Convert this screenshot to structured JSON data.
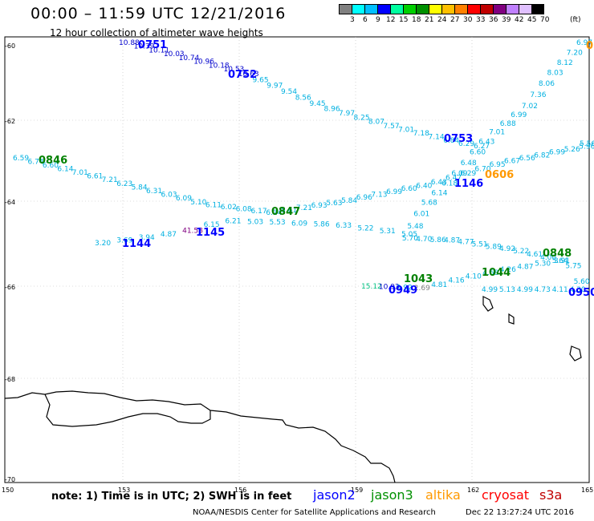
{
  "title": "00:00 – 11:59 UTC 12/21/2016",
  "subtitle": "12 hour collection of altimeter wave heights",
  "legend": {
    "unit": "(ft)",
    "colors": [
      "#808080",
      "#00ffff",
      "#00bfff",
      "#0000ff",
      "#00ffa0",
      "#00d000",
      "#009000",
      "#ffff00",
      "#ffc000",
      "#ff8000",
      "#ff0000",
      "#c00000",
      "#800080",
      "#c080ff",
      "#e0c0ff",
      "#000000"
    ],
    "labels": [
      "3",
      "6",
      "9",
      "12",
      "15",
      "18",
      "21",
      "24",
      "27",
      "30",
      "33",
      "36",
      "39",
      "42",
      "45",
      "70"
    ]
  },
  "axes": {
    "x_ticks": [
      "150",
      "153",
      "156",
      "159",
      "162",
      "165"
    ],
    "y_ticks": [
      "-60",
      "-62",
      "-64",
      "-66",
      "-68",
      "-70"
    ]
  },
  "track_labels": [
    {
      "text": "0751",
      "color": "#0000ff"
    },
    {
      "text": "0752",
      "color": "#0000ff"
    },
    {
      "text": "0753",
      "color": "#0000ff"
    },
    {
      "text": "0846",
      "color": "#008000"
    },
    {
      "text": "0847",
      "color": "#008000"
    },
    {
      "text": "0848",
      "color": "#008000"
    },
    {
      "text": "0949",
      "color": "#0000ff"
    },
    {
      "text": "0950",
      "color": "#0000ff"
    },
    {
      "text": "1043",
      "color": "#008000"
    },
    {
      "text": "1044",
      "color": "#008000"
    },
    {
      "text": "1144",
      "color": "#0000ff"
    },
    {
      "text": "1145",
      "color": "#0000ff"
    },
    {
      "text": "1146",
      "color": "#0000ff"
    },
    {
      "text": "0606",
      "color": "#ff9900"
    },
    {
      "text": "0",
      "color": "#ff9900"
    }
  ],
  "wave_tracks": [
    {
      "name": "0751-0752",
      "color_start": "#0000cc",
      "color_end": "#00b0e0",
      "values": [
        "10.88",
        "10.39",
        "10.11",
        "10.03",
        "10.74",
        "10.96",
        "10.18",
        "10.53",
        "10.63",
        "9.65",
        "9.97",
        "9.54",
        "8.56",
        "9.45",
        "8.96",
        "7.97",
        "8.25",
        "8.07",
        "7.57",
        "7.01",
        "7.18",
        "7.14",
        "6.84",
        "6.29",
        "6.27"
      ]
    },
    {
      "name": "0846-0847",
      "color_start": "#00b0e0",
      "color_end": "#00b0e0",
      "values": [
        "6.59",
        "6.74",
        "6.60",
        "6.14",
        "7.01",
        "6.61",
        "7.21",
        "6.23",
        "5.84",
        "6.31",
        "6.03",
        "6.09",
        "5.10",
        "6.11",
        "6.02",
        "6.08",
        "6.17",
        "6.14",
        "5.61",
        "7.21",
        "6.93",
        "5.63",
        "5.84",
        "6.96",
        "7.13",
        "6.99",
        "6.60",
        "6.40",
        "6.43",
        "6.47",
        "6.29",
        "6.70",
        "6.95",
        "6.67",
        "6.56",
        "6.82",
        "6.99",
        "5.26",
        "5.96",
        "5.56"
      ]
    },
    {
      "name": "0950-0753",
      "color_start": "#00b0e0",
      "color_end": "#00b0e0",
      "values": [
        "6.97",
        "7.20",
        "8.12",
        "8.03",
        "8.06",
        "7.36",
        "7.02",
        "6.99",
        "6.88",
        "7.01",
        "6.43",
        "6.60",
        "6.48",
        "6.09",
        "6.18",
        "6.14",
        "5.68",
        "6.01",
        "5.48",
        "5.70",
        "4.70",
        "5.86",
        "4.87",
        "4.77",
        "5.51",
        "5.89",
        "4.92",
        "5.22",
        "4.61",
        "4.00",
        "3.91"
      ]
    },
    {
      "name": "1144-1145-1146",
      "color_start": "#00b0e0",
      "color_end": "#00b0e0",
      "values": [
        "3.20",
        "3.69",
        "3.94",
        "4.87",
        "41.58",
        "6.15",
        "6.21",
        "5.03",
        "5.53",
        "6.09",
        "5.86",
        "6.33",
        "5.22",
        "5.31",
        "5.05"
      ]
    },
    {
      "name": "1043-1044-0848",
      "color_start": "#00b0e0",
      "color_end": "#00b0e0",
      "values": [
        "15.12",
        "10.93",
        "3.92",
        "2.69",
        "4.81",
        "4.16",
        "4.10",
        "4.58",
        "4.26",
        "4.87",
        "5.30",
        "5.64",
        "5.75",
        "5.60",
        "4.30",
        "4.11",
        "4.73",
        "4.99",
        "5.13",
        "4.99"
      ]
    }
  ],
  "footer": {
    "note": "note: 1) Time is in UTC; 2) SWH is in feet",
    "satellites": [
      {
        "name": "jason2",
        "color": "#0000ff"
      },
      {
        "name": "jason3",
        "color": "#009000"
      },
      {
        "name": "altika",
        "color": "#ff9900"
      },
      {
        "name": "cryosat",
        "color": "#ff0000"
      },
      {
        "name": "s3a",
        "color": "#c00000"
      }
    ],
    "credit": "NOAA/NESDIS Center for Satellite Applications and Research",
    "timestamp": "Dec 22 13:27:24 UTC 2016"
  }
}
